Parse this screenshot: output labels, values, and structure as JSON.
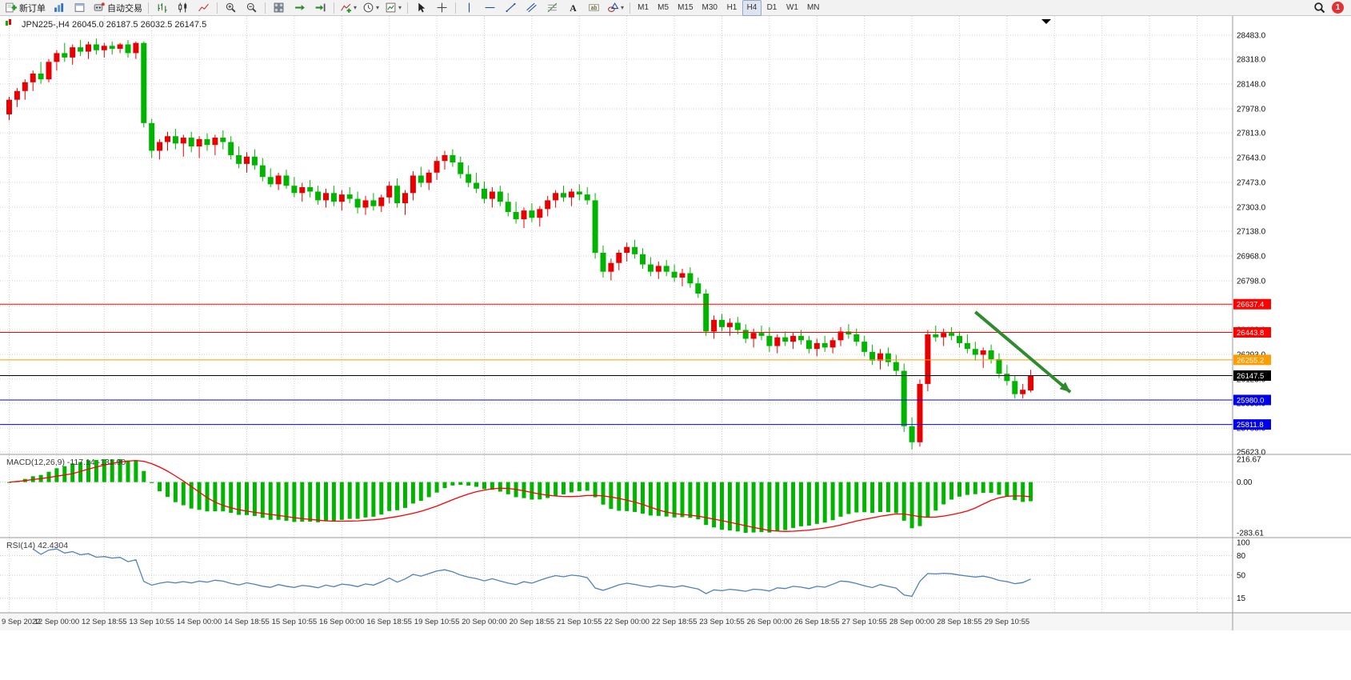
{
  "toolbar": {
    "new_order_label": "新订单",
    "auto_trading_label": "自动交易",
    "timeframes": [
      "M1",
      "M5",
      "M15",
      "M30",
      "H1",
      "H4",
      "D1",
      "W1",
      "MN"
    ],
    "active_timeframe": "H4",
    "notification_count": "1",
    "icons": [
      "new-order",
      "market-watch",
      "data-window",
      "auto-trading",
      "bar-chart",
      "candlestick-chart",
      "line-chart",
      "zoom-in",
      "zoom-out",
      "tile-windows",
      "auto-scroll",
      "chart-shift",
      "indicators",
      "periods",
      "templates",
      "cursor",
      "crosshair",
      "vertical-line",
      "horizontal-line",
      "trendline",
      "equidistant-channel",
      "fibonacci",
      "text",
      "text-label",
      "shapes",
      "search",
      "notification"
    ]
  },
  "chart": {
    "symbol": "JPN225-",
    "period": "H4",
    "title_text": "JPN225-,H4 26045.0 26187.5 26032.5 26147.5",
    "open": "26045.0",
    "high": "26187.5",
    "low": "26032.5",
    "close": "26147.5"
  },
  "indicators": {
    "macd": {
      "name": "MACD",
      "params": [
        12,
        26,
        9
      ],
      "label_text": "MACD(12,26,9) -117.14 -131.90",
      "value_main": "-117.14",
      "value_signal": "-131.90",
      "axis_labels": [
        "216.67",
        "0.00",
        "-283.61"
      ],
      "histogram_color": "#00b400",
      "signal_color": "#ff0000"
    },
    "rsi": {
      "name": "RSI",
      "params": [
        14
      ],
      "label_text": "RSI(14) 42.4304",
      "value": "42.4304",
      "axis_labels": [
        "100",
        "80",
        "50",
        "15"
      ],
      "levels": [
        80,
        50,
        15
      ],
      "line_color": "#4f81bd"
    }
  },
  "chart_data": {
    "type": "candlestick",
    "title": "JPN225-,H4",
    "bull_color": "#e80000",
    "bear_color": "#00b400",
    "grid": true,
    "price_axis_ticks": [
      28483.0,
      28318.0,
      28148.0,
      27978.0,
      27813.0,
      27643.0,
      27473.0,
      27303.0,
      27138.0,
      26968.0,
      26798.0,
      26628.0,
      26463.0,
      26293.0,
      26123.0,
      25958.0,
      25788.0,
      25623.0
    ],
    "time_labels": [
      "9 Sep 2022",
      "12 Sep 00:00",
      "12 Sep 18:55",
      "13 Sep 10:55",
      "14 Sep 00:00",
      "14 Sep 18:55",
      "15 Sep 10:55",
      "16 Sep 00:00",
      "16 Sep 18:55",
      "19 Sep 10:55",
      "20 Sep 00:00",
      "20 Sep 18:55",
      "21 Sep 10:55",
      "22 Sep 00:00",
      "22 Sep 18:55",
      "23 Sep 10:55",
      "26 Sep 00:00",
      "26 Sep 18:55",
      "27 Sep 10:55",
      "28 Sep 00:00",
      "28 Sep 18:55",
      "29 Sep 10:55"
    ],
    "bars_per_label": 6,
    "candles": [
      [
        27940,
        28060,
        27900,
        28040
      ],
      [
        28040,
        28120,
        27990,
        28100
      ],
      [
        28100,
        28180,
        28040,
        28160
      ],
      [
        28160,
        28240,
        28100,
        28220
      ],
      [
        28220,
        28300,
        28150,
        28180
      ],
      [
        28180,
        28320,
        28160,
        28300
      ],
      [
        28300,
        28380,
        28240,
        28360
      ],
      [
        28360,
        28430,
        28300,
        28330
      ],
      [
        28330,
        28420,
        28280,
        28400
      ],
      [
        28400,
        28450,
        28340,
        28370
      ],
      [
        28370,
        28440,
        28320,
        28420
      ],
      [
        28420,
        28460,
        28350,
        28380
      ],
      [
        28380,
        28430,
        28330,
        28410
      ],
      [
        28410,
        28440,
        28350,
        28390
      ],
      [
        28390,
        28430,
        28360,
        28420
      ],
      [
        28420,
        28450,
        28330,
        28360
      ],
      [
        28360,
        28440,
        28320,
        28430
      ],
      [
        28430,
        28440,
        27850,
        27880
      ],
      [
        27880,
        27910,
        27640,
        27690
      ],
      [
        27690,
        27770,
        27630,
        27750
      ],
      [
        27750,
        27820,
        27690,
        27790
      ],
      [
        27790,
        27840,
        27700,
        27740
      ],
      [
        27740,
        27800,
        27650,
        27780
      ],
      [
        27780,
        27820,
        27680,
        27720
      ],
      [
        27720,
        27790,
        27640,
        27770
      ],
      [
        27770,
        27810,
        27690,
        27730
      ],
      [
        27730,
        27800,
        27660,
        27780
      ],
      [
        27780,
        27830,
        27700,
        27750
      ],
      [
        27750,
        27790,
        27630,
        27660
      ],
      [
        27660,
        27720,
        27570,
        27600
      ],
      [
        27600,
        27680,
        27540,
        27650
      ],
      [
        27650,
        27700,
        27560,
        27590
      ],
      [
        27590,
        27640,
        27480,
        27510
      ],
      [
        27510,
        27570,
        27440,
        27460
      ],
      [
        27460,
        27540,
        27420,
        27520
      ],
      [
        27520,
        27560,
        27430,
        27450
      ],
      [
        27450,
        27510,
        27370,
        27400
      ],
      [
        27400,
        27470,
        27340,
        27440
      ],
      [
        27440,
        27490,
        27370,
        27410
      ],
      [
        27410,
        27450,
        27320,
        27350
      ],
      [
        27350,
        27430,
        27300,
        27400
      ],
      [
        27400,
        27450,
        27310,
        27340
      ],
      [
        27340,
        27420,
        27280,
        27390
      ],
      [
        27390,
        27440,
        27330,
        27360
      ],
      [
        27360,
        27410,
        27260,
        27300
      ],
      [
        27300,
        27380,
        27250,
        27350
      ],
      [
        27350,
        27400,
        27280,
        27310
      ],
      [
        27310,
        27390,
        27270,
        27370
      ],
      [
        27370,
        27480,
        27330,
        27450
      ],
      [
        27450,
        27500,
        27300,
        27330
      ],
      [
        27330,
        27420,
        27250,
        27400
      ],
      [
        27400,
        27550,
        27350,
        27520
      ],
      [
        27520,
        27580,
        27440,
        27470
      ],
      [
        27470,
        27560,
        27420,
        27540
      ],
      [
        27540,
        27650,
        27490,
        27620
      ],
      [
        27620,
        27690,
        27560,
        27660
      ],
      [
        27660,
        27700,
        27580,
        27610
      ],
      [
        27610,
        27650,
        27500,
        27530
      ],
      [
        27530,
        27590,
        27440,
        27470
      ],
      [
        27470,
        27540,
        27400,
        27430
      ],
      [
        27430,
        27480,
        27330,
        27360
      ],
      [
        27360,
        27440,
        27300,
        27410
      ],
      [
        27410,
        27450,
        27310,
        27340
      ],
      [
        27340,
        27400,
        27240,
        27270
      ],
      [
        27270,
        27340,
        27190,
        27220
      ],
      [
        27220,
        27300,
        27160,
        27280
      ],
      [
        27280,
        27330,
        27200,
        27230
      ],
      [
        27230,
        27310,
        27170,
        27290
      ],
      [
        27290,
        27380,
        27240,
        27350
      ],
      [
        27350,
        27420,
        27300,
        27400
      ],
      [
        27400,
        27450,
        27340,
        27370
      ],
      [
        27370,
        27430,
        27310,
        27410
      ],
      [
        27410,
        27460,
        27350,
        27390
      ],
      [
        27390,
        27440,
        27320,
        27350
      ],
      [
        27350,
        27400,
        26950,
        26990
      ],
      [
        26990,
        27040,
        26820,
        26860
      ],
      [
        26860,
        26950,
        26800,
        26920
      ],
      [
        26920,
        27010,
        26870,
        26990
      ],
      [
        26990,
        27060,
        26930,
        27030
      ],
      [
        27030,
        27080,
        26950,
        26980
      ],
      [
        26980,
        27020,
        26880,
        26910
      ],
      [
        26910,
        26960,
        26830,
        26860
      ],
      [
        26860,
        26930,
        26810,
        26900
      ],
      [
        26900,
        26940,
        26830,
        26860
      ],
      [
        26860,
        26910,
        26790,
        26820
      ],
      [
        26820,
        26880,
        26760,
        26850
      ],
      [
        26850,
        26890,
        26750,
        26780
      ],
      [
        26780,
        26820,
        26680,
        26710
      ],
      [
        26710,
        26740,
        26420,
        26450
      ],
      [
        26450,
        26560,
        26400,
        26530
      ],
      [
        26530,
        26570,
        26450,
        26480
      ],
      [
        26480,
        26540,
        26420,
        26510
      ],
      [
        26510,
        26550,
        26430,
        26460
      ],
      [
        26460,
        26500,
        26370,
        26400
      ],
      [
        26400,
        26470,
        26340,
        26440
      ],
      [
        26440,
        26490,
        26390,
        26420
      ],
      [
        26420,
        26480,
        26310,
        26350
      ],
      [
        26350,
        26430,
        26300,
        26410
      ],
      [
        26410,
        26450,
        26350,
        26380
      ],
      [
        26380,
        26440,
        26330,
        26420
      ],
      [
        26420,
        26460,
        26360,
        26390
      ],
      [
        26390,
        26420,
        26300,
        26330
      ],
      [
        26330,
        26400,
        26280,
        26370
      ],
      [
        26370,
        26420,
        26310,
        26340
      ],
      [
        26340,
        26410,
        26300,
        26390
      ],
      [
        26390,
        26480,
        26350,
        26450
      ],
      [
        26450,
        26500,
        26400,
        26430
      ],
      [
        26430,
        26470,
        26350,
        26380
      ],
      [
        26380,
        26420,
        26280,
        26310
      ],
      [
        26310,
        26360,
        26220,
        26250
      ],
      [
        26250,
        26330,
        26190,
        26300
      ],
      [
        26300,
        26340,
        26210,
        26240
      ],
      [
        26240,
        26290,
        26150,
        26180
      ],
      [
        26180,
        26230,
        25760,
        25800
      ],
      [
        25800,
        25860,
        25640,
        25690
      ],
      [
        25690,
        26120,
        25660,
        26090
      ],
      [
        26090,
        26460,
        26040,
        26430
      ],
      [
        26430,
        26490,
        26380,
        26410
      ],
      [
        26410,
        26470,
        26350,
        26440
      ],
      [
        26440,
        26480,
        26390,
        26420
      ],
      [
        26420,
        26450,
        26340,
        26370
      ],
      [
        26370,
        26430,
        26300,
        26330
      ],
      [
        26330,
        26380,
        26250,
        26290
      ],
      [
        26290,
        26340,
        26200,
        26320
      ],
      [
        26320,
        26360,
        26230,
        26260
      ],
      [
        26260,
        26300,
        26130,
        26160
      ],
      [
        26160,
        26220,
        26080,
        26110
      ],
      [
        26110,
        26150,
        25990,
        26020
      ],
      [
        26020,
        26090,
        25990,
        26050
      ],
      [
        26045,
        26187.5,
        26032.5,
        26147.5
      ]
    ],
    "hlines": [
      {
        "price": 26637.4,
        "label": "26637.4",
        "color": "#ff0000"
      },
      {
        "price": 26443.8,
        "label": "26443.8",
        "color": "#ff0000"
      },
      {
        "price": 26255.2,
        "label": "26255.2",
        "color": "#ff9c00"
      },
      {
        "price": 26147.5,
        "label": "26147.5",
        "color": "#000000"
      },
      {
        "price": 25980.0,
        "label": "25980.0",
        "color": "#0000ee"
      },
      {
        "price": 25811.8,
        "label": "25811.8",
        "color": "#0000ee"
      }
    ],
    "annotations": [
      {
        "type": "arrow",
        "color": "#2e8b2e",
        "from_bar": 122,
        "from_price": 26584,
        "to_bar": 134,
        "to_price": 26034
      }
    ]
  }
}
